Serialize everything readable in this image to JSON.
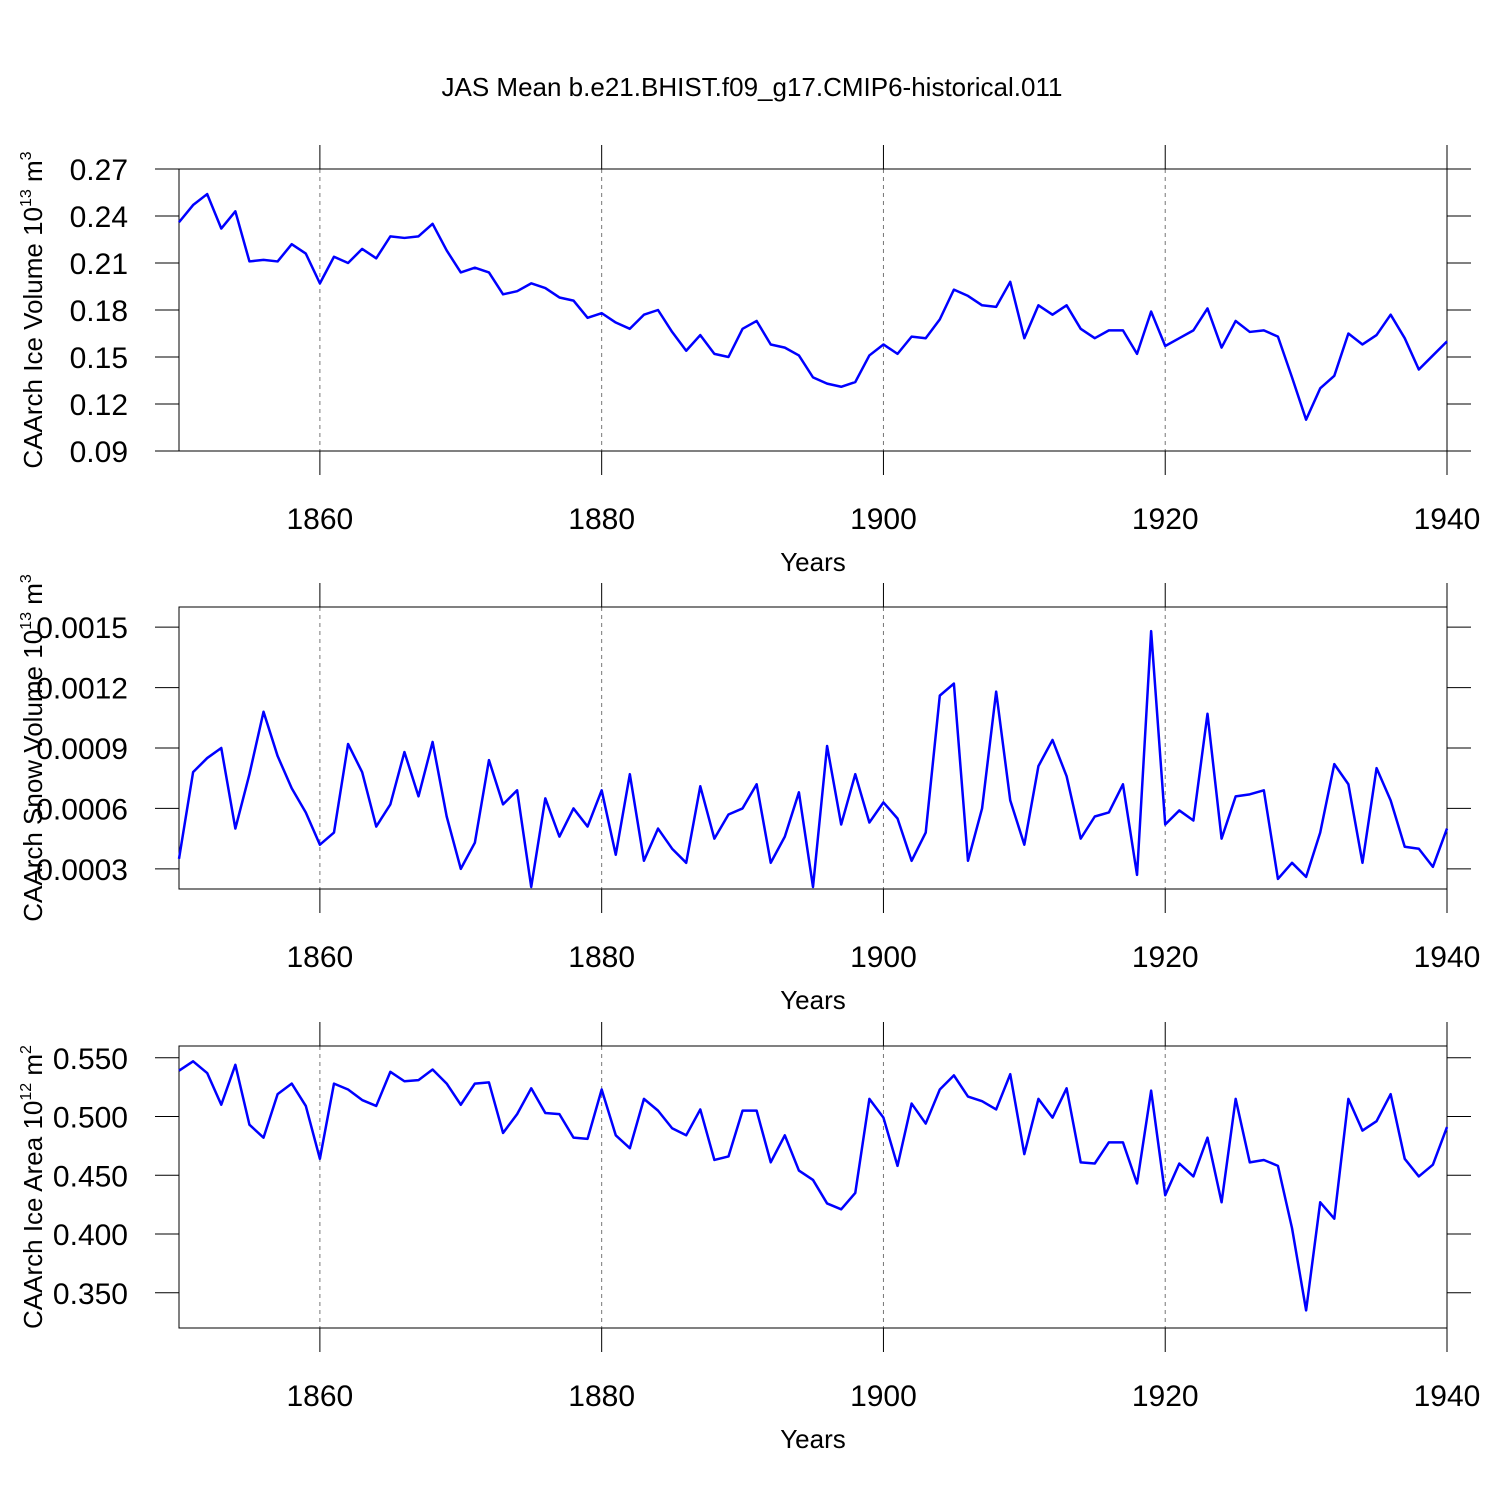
{
  "title": "JAS Mean b.e21.BHIST.f09_g17.CMIP6-historical.011",
  "chart_data": [
    {
      "type": "line",
      "ylabel": [
        "CAArch Ice Volume 10",
        "13",
        " m",
        "3"
      ],
      "xlabel": "Years",
      "xlim": [
        1850,
        1940
      ],
      "xticks": [
        1860,
        1880,
        1900,
        1920,
        1940
      ],
      "ylim": [
        0.09,
        0.27
      ],
      "yticks": [
        0.09,
        0.12,
        0.15,
        0.18,
        0.21,
        0.24,
        0.27
      ],
      "grid": "x-dashed",
      "x": [
        1850,
        1851,
        1852,
        1853,
        1854,
        1855,
        1856,
        1857,
        1858,
        1859,
        1860,
        1861,
        1862,
        1863,
        1864,
        1865,
        1866,
        1867,
        1868,
        1869,
        1870,
        1871,
        1872,
        1873,
        1874,
        1875,
        1876,
        1877,
        1878,
        1879,
        1880,
        1881,
        1882,
        1883,
        1884,
        1885,
        1886,
        1887,
        1888,
        1889,
        1890,
        1891,
        1892,
        1893,
        1894,
        1895,
        1896,
        1897,
        1898,
        1899,
        1900,
        1901,
        1902,
        1903,
        1904,
        1905,
        1906,
        1907,
        1908,
        1909,
        1910,
        1911,
        1912,
        1913,
        1914,
        1915,
        1916,
        1917,
        1918,
        1919,
        1920,
        1921,
        1922,
        1923,
        1924,
        1925,
        1926,
        1927,
        1928,
        1929,
        1930,
        1931,
        1932,
        1933,
        1934,
        1935,
        1936,
        1937,
        1938,
        1939,
        1940
      ],
      "series": [
        {
          "color": "#0000ff",
          "values": [
            0.236,
            0.247,
            0.254,
            0.232,
            0.243,
            0.211,
            0.212,
            0.211,
            0.222,
            0.216,
            0.197,
            0.214,
            0.21,
            0.219,
            0.213,
            0.227,
            0.226,
            0.227,
            0.235,
            0.218,
            0.204,
            0.207,
            0.204,
            0.19,
            0.192,
            0.197,
            0.194,
            0.188,
            0.186,
            0.175,
            0.178,
            0.172,
            0.168,
            0.177,
            0.18,
            0.166,
            0.154,
            0.164,
            0.152,
            0.15,
            0.168,
            0.173,
            0.158,
            0.156,
            0.151,
            0.137,
            0.133,
            0.131,
            0.134,
            0.151,
            0.158,
            0.152,
            0.163,
            0.162,
            0.174,
            0.193,
            0.189,
            0.183,
            0.182,
            0.198,
            0.162,
            0.183,
            0.177,
            0.183,
            0.168,
            0.162,
            0.167,
            0.167,
            0.152,
            0.179,
            0.157,
            0.162,
            0.167,
            0.181,
            0.156,
            0.173,
            0.166,
            0.167,
            0.163,
            0.137,
            0.11,
            0.13,
            0.138,
            0.165,
            0.158,
            0.164,
            0.177,
            0.162,
            0.142,
            0.151,
            0.16
          ]
        }
      ]
    },
    {
      "type": "line",
      "ylabel": [
        "CAArch Snow Volume 10",
        "13",
        " m",
        "3"
      ],
      "xlabel": "Years",
      "xlim": [
        1850,
        1940
      ],
      "xticks": [
        1860,
        1880,
        1900,
        1920,
        1940
      ],
      "ylim": [
        0.0002,
        0.0016
      ],
      "yticks": [
        0.0003,
        0.0006,
        0.0009,
        0.0012,
        0.0015
      ],
      "grid": "x-dashed",
      "x": [
        1850,
        1851,
        1852,
        1853,
        1854,
        1855,
        1856,
        1857,
        1858,
        1859,
        1860,
        1861,
        1862,
        1863,
        1864,
        1865,
        1866,
        1867,
        1868,
        1869,
        1870,
        1871,
        1872,
        1873,
        1874,
        1875,
        1876,
        1877,
        1878,
        1879,
        1880,
        1881,
        1882,
        1883,
        1884,
        1885,
        1886,
        1887,
        1888,
        1889,
        1890,
        1891,
        1892,
        1893,
        1894,
        1895,
        1896,
        1897,
        1898,
        1899,
        1900,
        1901,
        1902,
        1903,
        1904,
        1905,
        1906,
        1907,
        1908,
        1909,
        1910,
        1911,
        1912,
        1913,
        1914,
        1915,
        1916,
        1917,
        1918,
        1919,
        1920,
        1921,
        1922,
        1923,
        1924,
        1925,
        1926,
        1927,
        1928,
        1929,
        1930,
        1931,
        1932,
        1933,
        1934,
        1935,
        1936,
        1937,
        1938,
        1939,
        1940
      ],
      "series": [
        {
          "color": "#0000ff",
          "values": [
            0.00035,
            0.00078,
            0.00085,
            0.0009,
            0.0005,
            0.00077,
            0.00108,
            0.00086,
            0.0007,
            0.00058,
            0.00042,
            0.00048,
            0.00092,
            0.00078,
            0.00051,
            0.00062,
            0.00088,
            0.00066,
            0.00093,
            0.00056,
            0.0003,
            0.00043,
            0.00084,
            0.00062,
            0.00069,
            0.00021,
            0.00065,
            0.00046,
            0.0006,
            0.00051,
            0.00069,
            0.00037,
            0.00077,
            0.00034,
            0.0005,
            0.0004,
            0.00033,
            0.00071,
            0.00045,
            0.00057,
            0.0006,
            0.00072,
            0.00033,
            0.00046,
            0.00068,
            0.00021,
            0.00091,
            0.00052,
            0.00077,
            0.00053,
            0.00063,
            0.00055,
            0.00034,
            0.00048,
            0.00116,
            0.00122,
            0.00034,
            0.0006,
            0.00118,
            0.00064,
            0.00042,
            0.00081,
            0.00094,
            0.00076,
            0.00045,
            0.00056,
            0.00058,
            0.00072,
            0.00027,
            0.00148,
            0.00052,
            0.00059,
            0.00054,
            0.00107,
            0.00045,
            0.00066,
            0.00067,
            0.00069,
            0.00025,
            0.00033,
            0.00026,
            0.00048,
            0.00082,
            0.00072,
            0.00033,
            0.0008,
            0.00064,
            0.00041,
            0.0004,
            0.00031,
            0.0005
          ]
        }
      ]
    },
    {
      "type": "line",
      "ylabel": [
        "CAArch Ice Area 10",
        "12",
        " m",
        "2"
      ],
      "xlabel": "Years",
      "xlim": [
        1850,
        1940
      ],
      "xticks": [
        1860,
        1880,
        1900,
        1920,
        1940
      ],
      "ylim": [
        0.32,
        0.56
      ],
      "yticks": [
        {
          "value": 0.35,
          "label": "0.350"
        },
        {
          "value": 0.4,
          "label": "0.400"
        },
        {
          "value": 0.45,
          "label": "0.450"
        },
        {
          "value": 0.5,
          "label": "0.500"
        },
        {
          "value": 0.55,
          "label": "0.550"
        }
      ],
      "grid": "x-dashed",
      "x": [
        1850,
        1851,
        1852,
        1853,
        1854,
        1855,
        1856,
        1857,
        1858,
        1859,
        1860,
        1861,
        1862,
        1863,
        1864,
        1865,
        1866,
        1867,
        1868,
        1869,
        1870,
        1871,
        1872,
        1873,
        1874,
        1875,
        1876,
        1877,
        1878,
        1879,
        1880,
        1881,
        1882,
        1883,
        1884,
        1885,
        1886,
        1887,
        1888,
        1889,
        1890,
        1891,
        1892,
        1893,
        1894,
        1895,
        1896,
        1897,
        1898,
        1899,
        1900,
        1901,
        1902,
        1903,
        1904,
        1905,
        1906,
        1907,
        1908,
        1909,
        1910,
        1911,
        1912,
        1913,
        1914,
        1915,
        1916,
        1917,
        1918,
        1919,
        1920,
        1921,
        1922,
        1923,
        1924,
        1925,
        1926,
        1927,
        1928,
        1929,
        1930,
        1931,
        1932,
        1933,
        1934,
        1935,
        1936,
        1937,
        1938,
        1939,
        1940
      ],
      "series": [
        {
          "color": "#0000ff",
          "values": [
            0.539,
            0.547,
            0.537,
            0.51,
            0.544,
            0.493,
            0.482,
            0.519,
            0.528,
            0.509,
            0.464,
            0.528,
            0.523,
            0.514,
            0.509,
            0.538,
            0.53,
            0.531,
            0.54,
            0.528,
            0.51,
            0.528,
            0.529,
            0.486,
            0.502,
            0.524,
            0.503,
            0.502,
            0.482,
            0.481,
            0.523,
            0.484,
            0.473,
            0.515,
            0.505,
            0.49,
            0.484,
            0.506,
            0.463,
            0.466,
            0.505,
            0.505,
            0.461,
            0.484,
            0.454,
            0.446,
            0.426,
            0.421,
            0.435,
            0.515,
            0.499,
            0.458,
            0.511,
            0.494,
            0.523,
            0.535,
            0.517,
            0.513,
            0.506,
            0.536,
            0.468,
            0.515,
            0.499,
            0.524,
            0.461,
            0.46,
            0.478,
            0.478,
            0.443,
            0.522,
            0.433,
            0.46,
            0.449,
            0.482,
            0.427,
            0.515,
            0.461,
            0.463,
            0.458,
            0.405,
            0.335,
            0.427,
            0.413,
            0.515,
            0.488,
            0.496,
            0.519,
            0.464,
            0.449,
            0.459,
            0.491
          ]
        }
      ]
    }
  ]
}
